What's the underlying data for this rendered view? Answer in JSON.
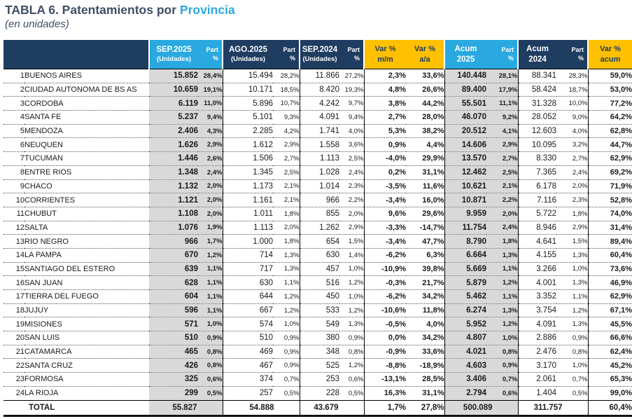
{
  "title": {
    "main": "TABLA 6. Patentamientos por ",
    "highlight": "Provincia",
    "subtitle": "(en unidades)"
  },
  "colors": {
    "navy": "#1f3c61",
    "light_blue": "#29a9e0",
    "yellow": "#ffc000",
    "gray_column": "#d9d9d9",
    "positive_green": "#10ad58",
    "negative_red": "#e23a44"
  },
  "header": {
    "sep2025": {
      "line1": "SEP.2025",
      "line2": "(Unidades)"
    },
    "ago2025": {
      "line1": "AGO.2025",
      "line2": "(Unidades)"
    },
    "sep2024": {
      "line1": "SEP.2024",
      "line2": "(Unidades)"
    },
    "part": {
      "line1": "Part",
      "line2": "%"
    },
    "var_mm": {
      "line1": "Var %",
      "line2": "m/m"
    },
    "var_aa": {
      "line1": "Var %",
      "line2": "a/a"
    },
    "acum2025": {
      "line1": "Acum",
      "line2": "2025"
    },
    "acum2024": {
      "line1": "Acum",
      "line2": "2024"
    },
    "var_acum": {
      "line1": "Var %",
      "line2": "acum"
    }
  },
  "table": {
    "columns": [
      "#",
      "Provincia",
      "SEP.2025 (Unidades)",
      "Part %",
      "AGO.2025 (Unidades)",
      "Part %",
      "SEP.2024 (Unidades)",
      "Part %",
      "Var % m/m",
      "Var % a/a",
      "Acum 2025",
      "Part %",
      "Acum 2024",
      "Part %",
      "Var % acum"
    ],
    "rows": [
      [
        "1",
        "BUENOS AIRES",
        "15.852",
        "28,4%",
        "15.494",
        "28,2%",
        "11.866",
        "27,2%",
        "2,3%",
        "33,6%",
        "140.448",
        "28,1%",
        "88.341",
        "28,3%",
        "59,0%"
      ],
      [
        "2",
        "CIUDAD AUTONOMA DE BS AS",
        "10.659",
        "19,1%",
        "10.171",
        "18,5%",
        "8.420",
        "19,3%",
        "4,8%",
        "26,6%",
        "89.400",
        "17,9%",
        "58.424",
        "18,7%",
        "53,0%"
      ],
      [
        "3",
        "CORDOBA",
        "6.119",
        "11,0%",
        "5.896",
        "10,7%",
        "4.242",
        "9,7%",
        "3,8%",
        "44,2%",
        "55.501",
        "11,1%",
        "31.328",
        "10,0%",
        "77,2%"
      ],
      [
        "4",
        "SANTA FE",
        "5.237",
        "9,4%",
        "5.101",
        "9,3%",
        "4.091",
        "9,4%",
        "2,7%",
        "28,0%",
        "46.070",
        "9,2%",
        "28.052",
        "9,0%",
        "64,2%"
      ],
      [
        "5",
        "MENDOZA",
        "2.406",
        "4,3%",
        "2.285",
        "4,2%",
        "1.741",
        "4,0%",
        "5,3%",
        "38,2%",
        "20.512",
        "4,1%",
        "12.603",
        "4,0%",
        "62,8%"
      ],
      [
        "6",
        "NEUQUEN",
        "1.626",
        "2,9%",
        "1.612",
        "2,9%",
        "1.558",
        "3,6%",
        "0,9%",
        "4,4%",
        "14.606",
        "2,9%",
        "10.095",
        "3,2%",
        "44,7%"
      ],
      [
        "7",
        "TUCUMAN",
        "1.446",
        "2,6%",
        "1.506",
        "2,7%",
        "1.113",
        "2,5%",
        "-4,0%",
        "29,9%",
        "13.570",
        "2,7%",
        "8.330",
        "2,7%",
        "62,9%"
      ],
      [
        "8",
        "ENTRE RIOS",
        "1.348",
        "2,4%",
        "1.345",
        "2,5%",
        "1.028",
        "2,4%",
        "0,2%",
        "31,1%",
        "12.462",
        "2,5%",
        "7.365",
        "2,4%",
        "69,2%"
      ],
      [
        "9",
        "CHACO",
        "1.132",
        "2,0%",
        "1.173",
        "2,1%",
        "1.014",
        "2,3%",
        "-3,5%",
        "11,6%",
        "10.621",
        "2,1%",
        "6.178",
        "2,0%",
        "71,9%"
      ],
      [
        "10",
        "CORRIENTES",
        "1.121",
        "2,0%",
        "1.161",
        "2,1%",
        "966",
        "2,2%",
        "-3,4%",
        "16,0%",
        "10.871",
        "2,2%",
        "7.116",
        "2,3%",
        "52,8%"
      ],
      [
        "11",
        "CHUBUT",
        "1.108",
        "2,0%",
        "1.011",
        "1,8%",
        "855",
        "2,0%",
        "9,6%",
        "29,6%",
        "9.959",
        "2,0%",
        "5.722",
        "1,8%",
        "74,0%"
      ],
      [
        "12",
        "SALTA",
        "1.076",
        "1,9%",
        "1.113",
        "2,0%",
        "1.262",
        "2,9%",
        "-3,3%",
        "-14,7%",
        "11.754",
        "2,4%",
        "8.946",
        "2,9%",
        "31,4%"
      ],
      [
        "13",
        "RIO NEGRO",
        "966",
        "1,7%",
        "1.000",
        "1,8%",
        "654",
        "1,5%",
        "-3,4%",
        "47,7%",
        "8.790",
        "1,8%",
        "4.641",
        "1,5%",
        "89,4%"
      ],
      [
        "14",
        "LA PAMPA",
        "670",
        "1,2%",
        "714",
        "1,3%",
        "630",
        "1,4%",
        "-6,2%",
        "6,3%",
        "6.664",
        "1,3%",
        "4.155",
        "1,3%",
        "60,4%"
      ],
      [
        "15",
        "SANTIAGO DEL ESTERO",
        "639",
        "1,1%",
        "717",
        "1,3%",
        "457",
        "1,0%",
        "-10,9%",
        "39,8%",
        "5.669",
        "1,1%",
        "3.266",
        "1,0%",
        "73,6%"
      ],
      [
        "16",
        "SAN JUAN",
        "628",
        "1,1%",
        "630",
        "1,1%",
        "516",
        "1,2%",
        "-0,3%",
        "21,7%",
        "5.879",
        "1,2%",
        "4.001",
        "1,3%",
        "46,9%"
      ],
      [
        "17",
        "TIERRA DEL FUEGO",
        "604",
        "1,1%",
        "644",
        "1,2%",
        "450",
        "1,0%",
        "-6,2%",
        "34,2%",
        "5.462",
        "1,1%",
        "3.352",
        "1,1%",
        "62,9%"
      ],
      [
        "18",
        "JUJUY",
        "596",
        "1,1%",
        "667",
        "1,2%",
        "533",
        "1,2%",
        "-10,6%",
        "11,8%",
        "6.274",
        "1,3%",
        "3.754",
        "1,2%",
        "67,1%"
      ],
      [
        "19",
        "MISIONES",
        "571",
        "1,0%",
        "574",
        "1,0%",
        "549",
        "1,3%",
        "-0,5%",
        "4,0%",
        "5.952",
        "1,2%",
        "4.091",
        "1,3%",
        "45,5%"
      ],
      [
        "20",
        "SAN LUIS",
        "510",
        "0,9%",
        "510",
        "0,9%",
        "380",
        "0,9%",
        "0,0%",
        "34,2%",
        "4.807",
        "1,0%",
        "2.886",
        "0,9%",
        "66,6%"
      ],
      [
        "21",
        "CATAMARCA",
        "465",
        "0,8%",
        "469",
        "0,9%",
        "348",
        "0,8%",
        "-0,9%",
        "33,6%",
        "4.021",
        "0,8%",
        "2.476",
        "0,8%",
        "62,4%"
      ],
      [
        "22",
        "SANTA CRUZ",
        "426",
        "0,8%",
        "467",
        "0,9%",
        "525",
        "1,2%",
        "-8,8%",
        "-18,9%",
        "4.603",
        "0,9%",
        "3.170",
        "1,0%",
        "45,2%"
      ],
      [
        "23",
        "FORMOSA",
        "325",
        "0,6%",
        "374",
        "0,7%",
        "253",
        "0,6%",
        "-13,1%",
        "28,5%",
        "3.406",
        "0,7%",
        "2.061",
        "0,7%",
        "65,3%"
      ],
      [
        "24",
        "LA RIOJA",
        "299",
        "0,5%",
        "257",
        "0,5%",
        "228",
        "0,5%",
        "16,3%",
        "31,1%",
        "2.794",
        "0,6%",
        "1.404",
        "0,5%",
        "99,0%"
      ]
    ],
    "total": {
      "label": "TOTAL",
      "sep2025": "55.827",
      "ago2025": "54.888",
      "sep2024": "43.679",
      "var_mm": "1,7%",
      "var_aa": "27,8%",
      "acum2025": "500.089",
      "acum2024": "311.757",
      "var_acum": "60,4%"
    }
  }
}
